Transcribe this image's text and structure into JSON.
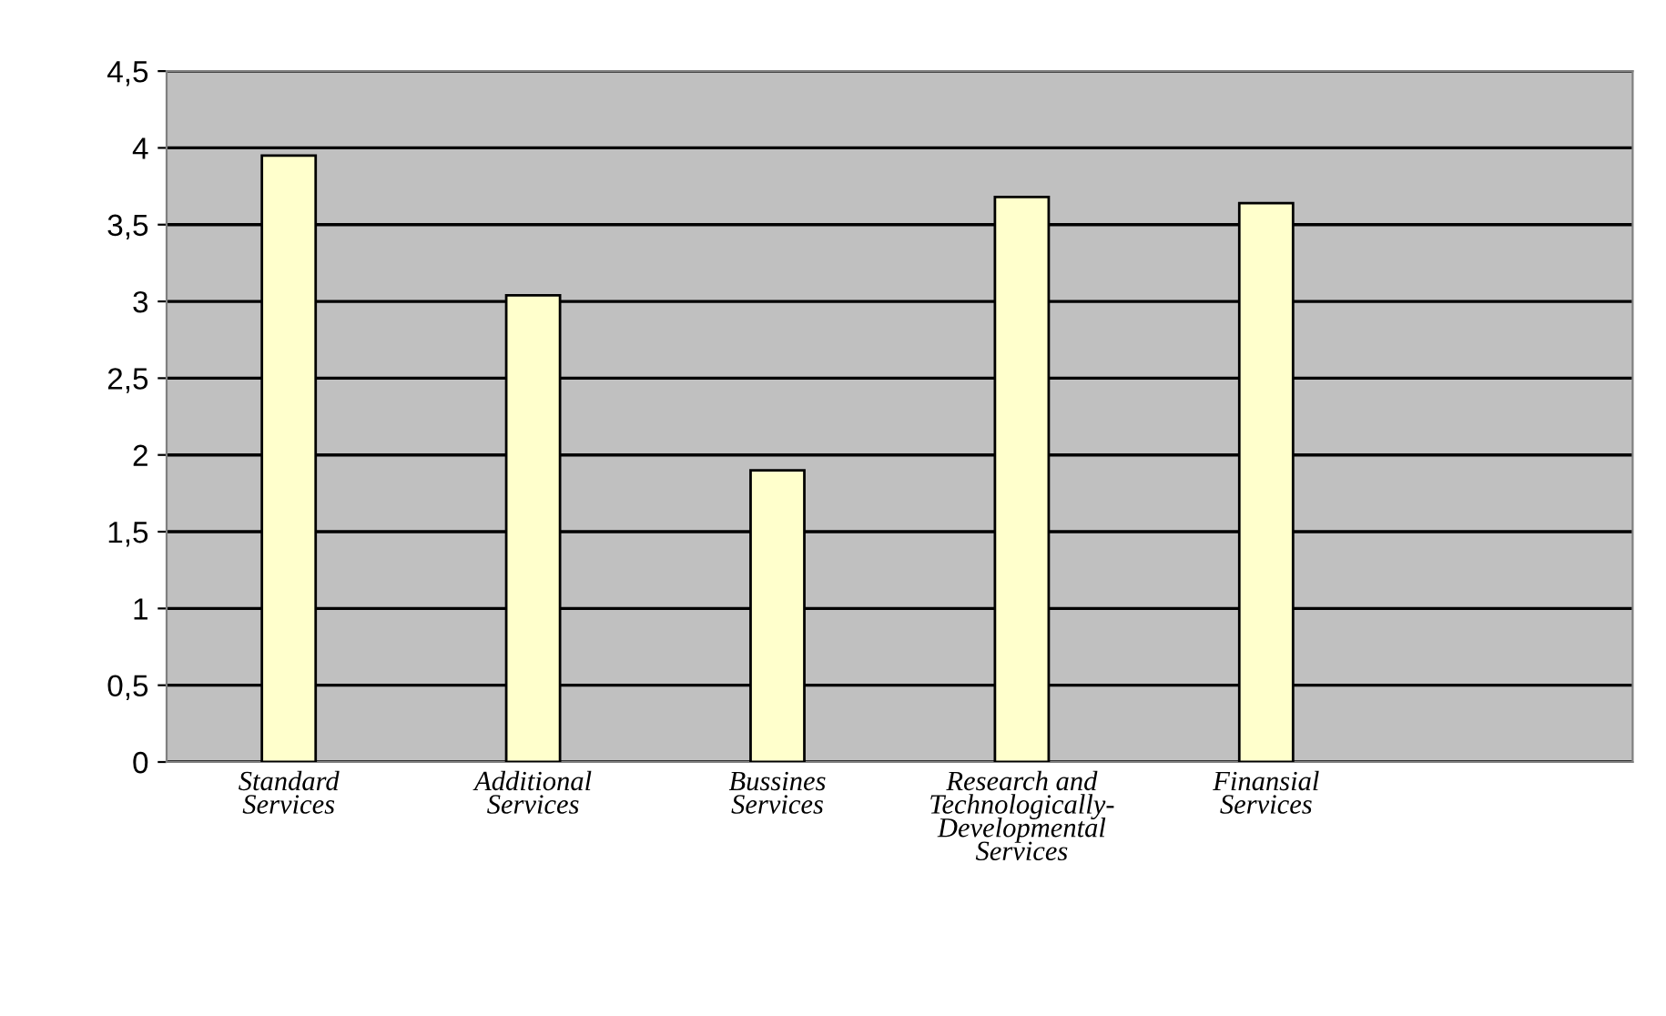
{
  "chart_data": {
    "type": "bar",
    "categories": [
      "Standard\nServices",
      "Additional\nServices",
      "Bussines\nServices",
      "Research and\nTechnologically-\nDevelopmental\nServices",
      "Finansial\nServices",
      null
    ],
    "values": [
      3.95,
      3.04,
      1.9,
      3.68,
      3.64,
      null
    ],
    "color": "#ffffcc",
    "ylim": [
      0,
      4.5
    ],
    "yticks": [
      0,
      {
        "value": 0.5,
        "label": "0,5"
      },
      1,
      {
        "value": 1.5,
        "label": "1,5"
      },
      2,
      {
        "value": 2.5,
        "label": "2,5"
      },
      3,
      {
        "value": 3.5,
        "label": "3,5"
      },
      4,
      {
        "value": 4.5,
        "label": "4,5"
      }
    ],
    "grid": "y",
    "legend": false
  }
}
